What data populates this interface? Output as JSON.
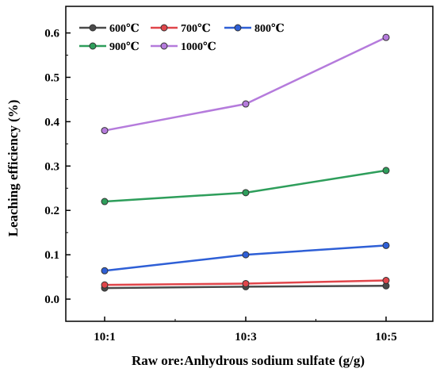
{
  "chart_data": {
    "type": "line",
    "title": "",
    "xlabel": "Raw ore:Anhydrous sodium sulfate (g/g)",
    "ylabel": "Leaching efficiency (%)",
    "categories": [
      "10:1",
      "10:3",
      "10:5"
    ],
    "ylim": [
      -0.05,
      0.66
    ],
    "yticks": [
      0.0,
      0.1,
      0.2,
      0.3,
      0.4,
      0.5,
      0.6
    ],
    "ytick_labels": [
      "0.0",
      "0.1",
      "0.2",
      "0.3",
      "0.4",
      "0.5",
      "0.6"
    ],
    "grid": false,
    "legend_position": "top-left",
    "series": [
      {
        "name": "600℃",
        "color": "#4a4a4a",
        "values": [
          0.025,
          0.028,
          0.03
        ]
      },
      {
        "name": "700℃",
        "color": "#e0454a",
        "values": [
          0.032,
          0.035,
          0.042
        ]
      },
      {
        "name": "800℃",
        "color": "#2e5fd6",
        "values": [
          0.064,
          0.1,
          0.121
        ]
      },
      {
        "name": "900℃",
        "color": "#2e9e5b",
        "values": [
          0.22,
          0.24,
          0.29
        ]
      },
      {
        "name": "1000℃",
        "color": "#b57bdc",
        "values": [
          0.38,
          0.44,
          0.59
        ]
      }
    ]
  }
}
